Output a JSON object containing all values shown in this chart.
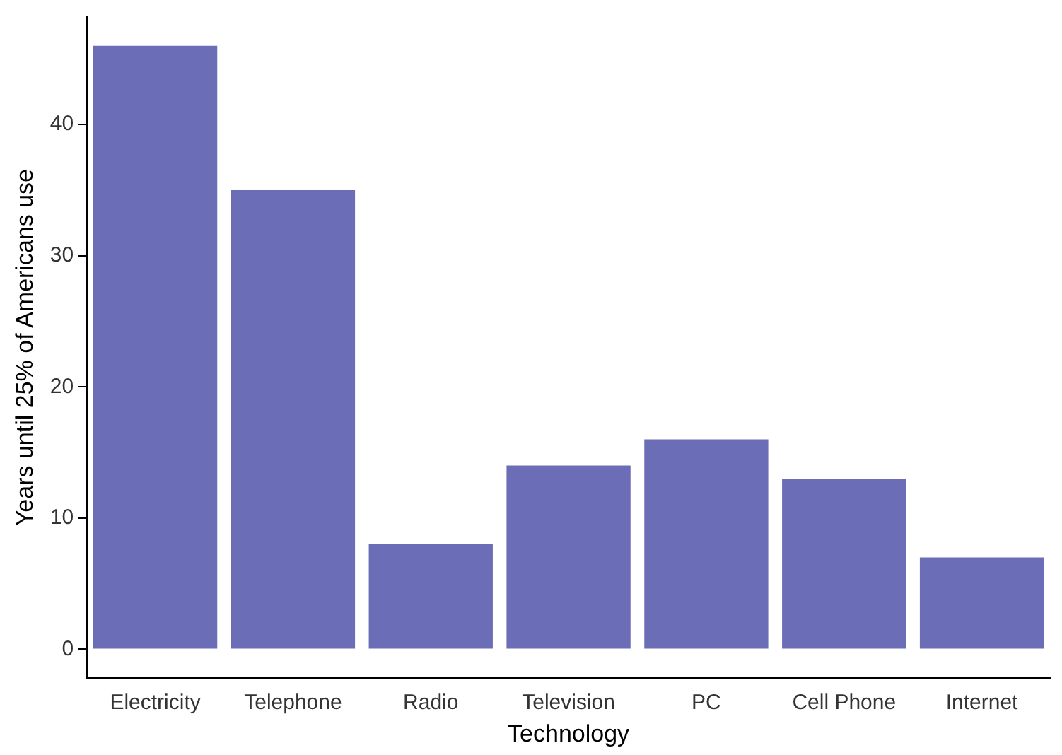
{
  "chart_data": {
    "type": "bar",
    "xlabel": "Technology",
    "ylabel": "Years until 25% of Americans use",
    "categories": [
      "Electricity",
      "Telephone",
      "Radio",
      "Television",
      "PC",
      "Cell Phone",
      "Internet"
    ],
    "values": [
      46,
      35,
      8,
      14,
      16,
      13,
      7
    ],
    "color": "#6b6eb6",
    "ylim": [
      -2.2,
      48.2
    ],
    "yticks": [
      0,
      10,
      20,
      30,
      40
    ],
    "grid": false,
    "legend": false
  }
}
